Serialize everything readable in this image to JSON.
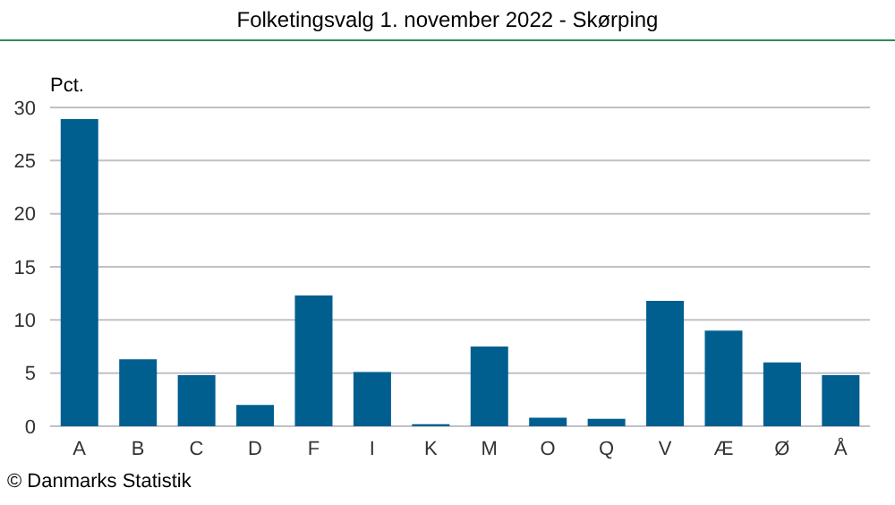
{
  "chart_data": {
    "type": "bar",
    "title": "Folketingsvalg 1. november 2022 - Skørping",
    "ylabel": "Pct.",
    "categories": [
      "A",
      "B",
      "C",
      "D",
      "F",
      "I",
      "K",
      "M",
      "O",
      "Q",
      "V",
      "Æ",
      "Ø",
      "Å"
    ],
    "values": [
      28.9,
      6.3,
      4.8,
      2.0,
      12.3,
      5.1,
      0.2,
      7.5,
      0.8,
      0.7,
      11.8,
      9.0,
      6.0,
      4.8
    ],
    "color": "#005f8f",
    "ylim": [
      0,
      30
    ],
    "yticks": [
      0,
      5,
      10,
      15,
      20,
      25,
      30
    ],
    "grid": "y",
    "annotations": [
      "© Danmarks Statistik"
    ]
  }
}
